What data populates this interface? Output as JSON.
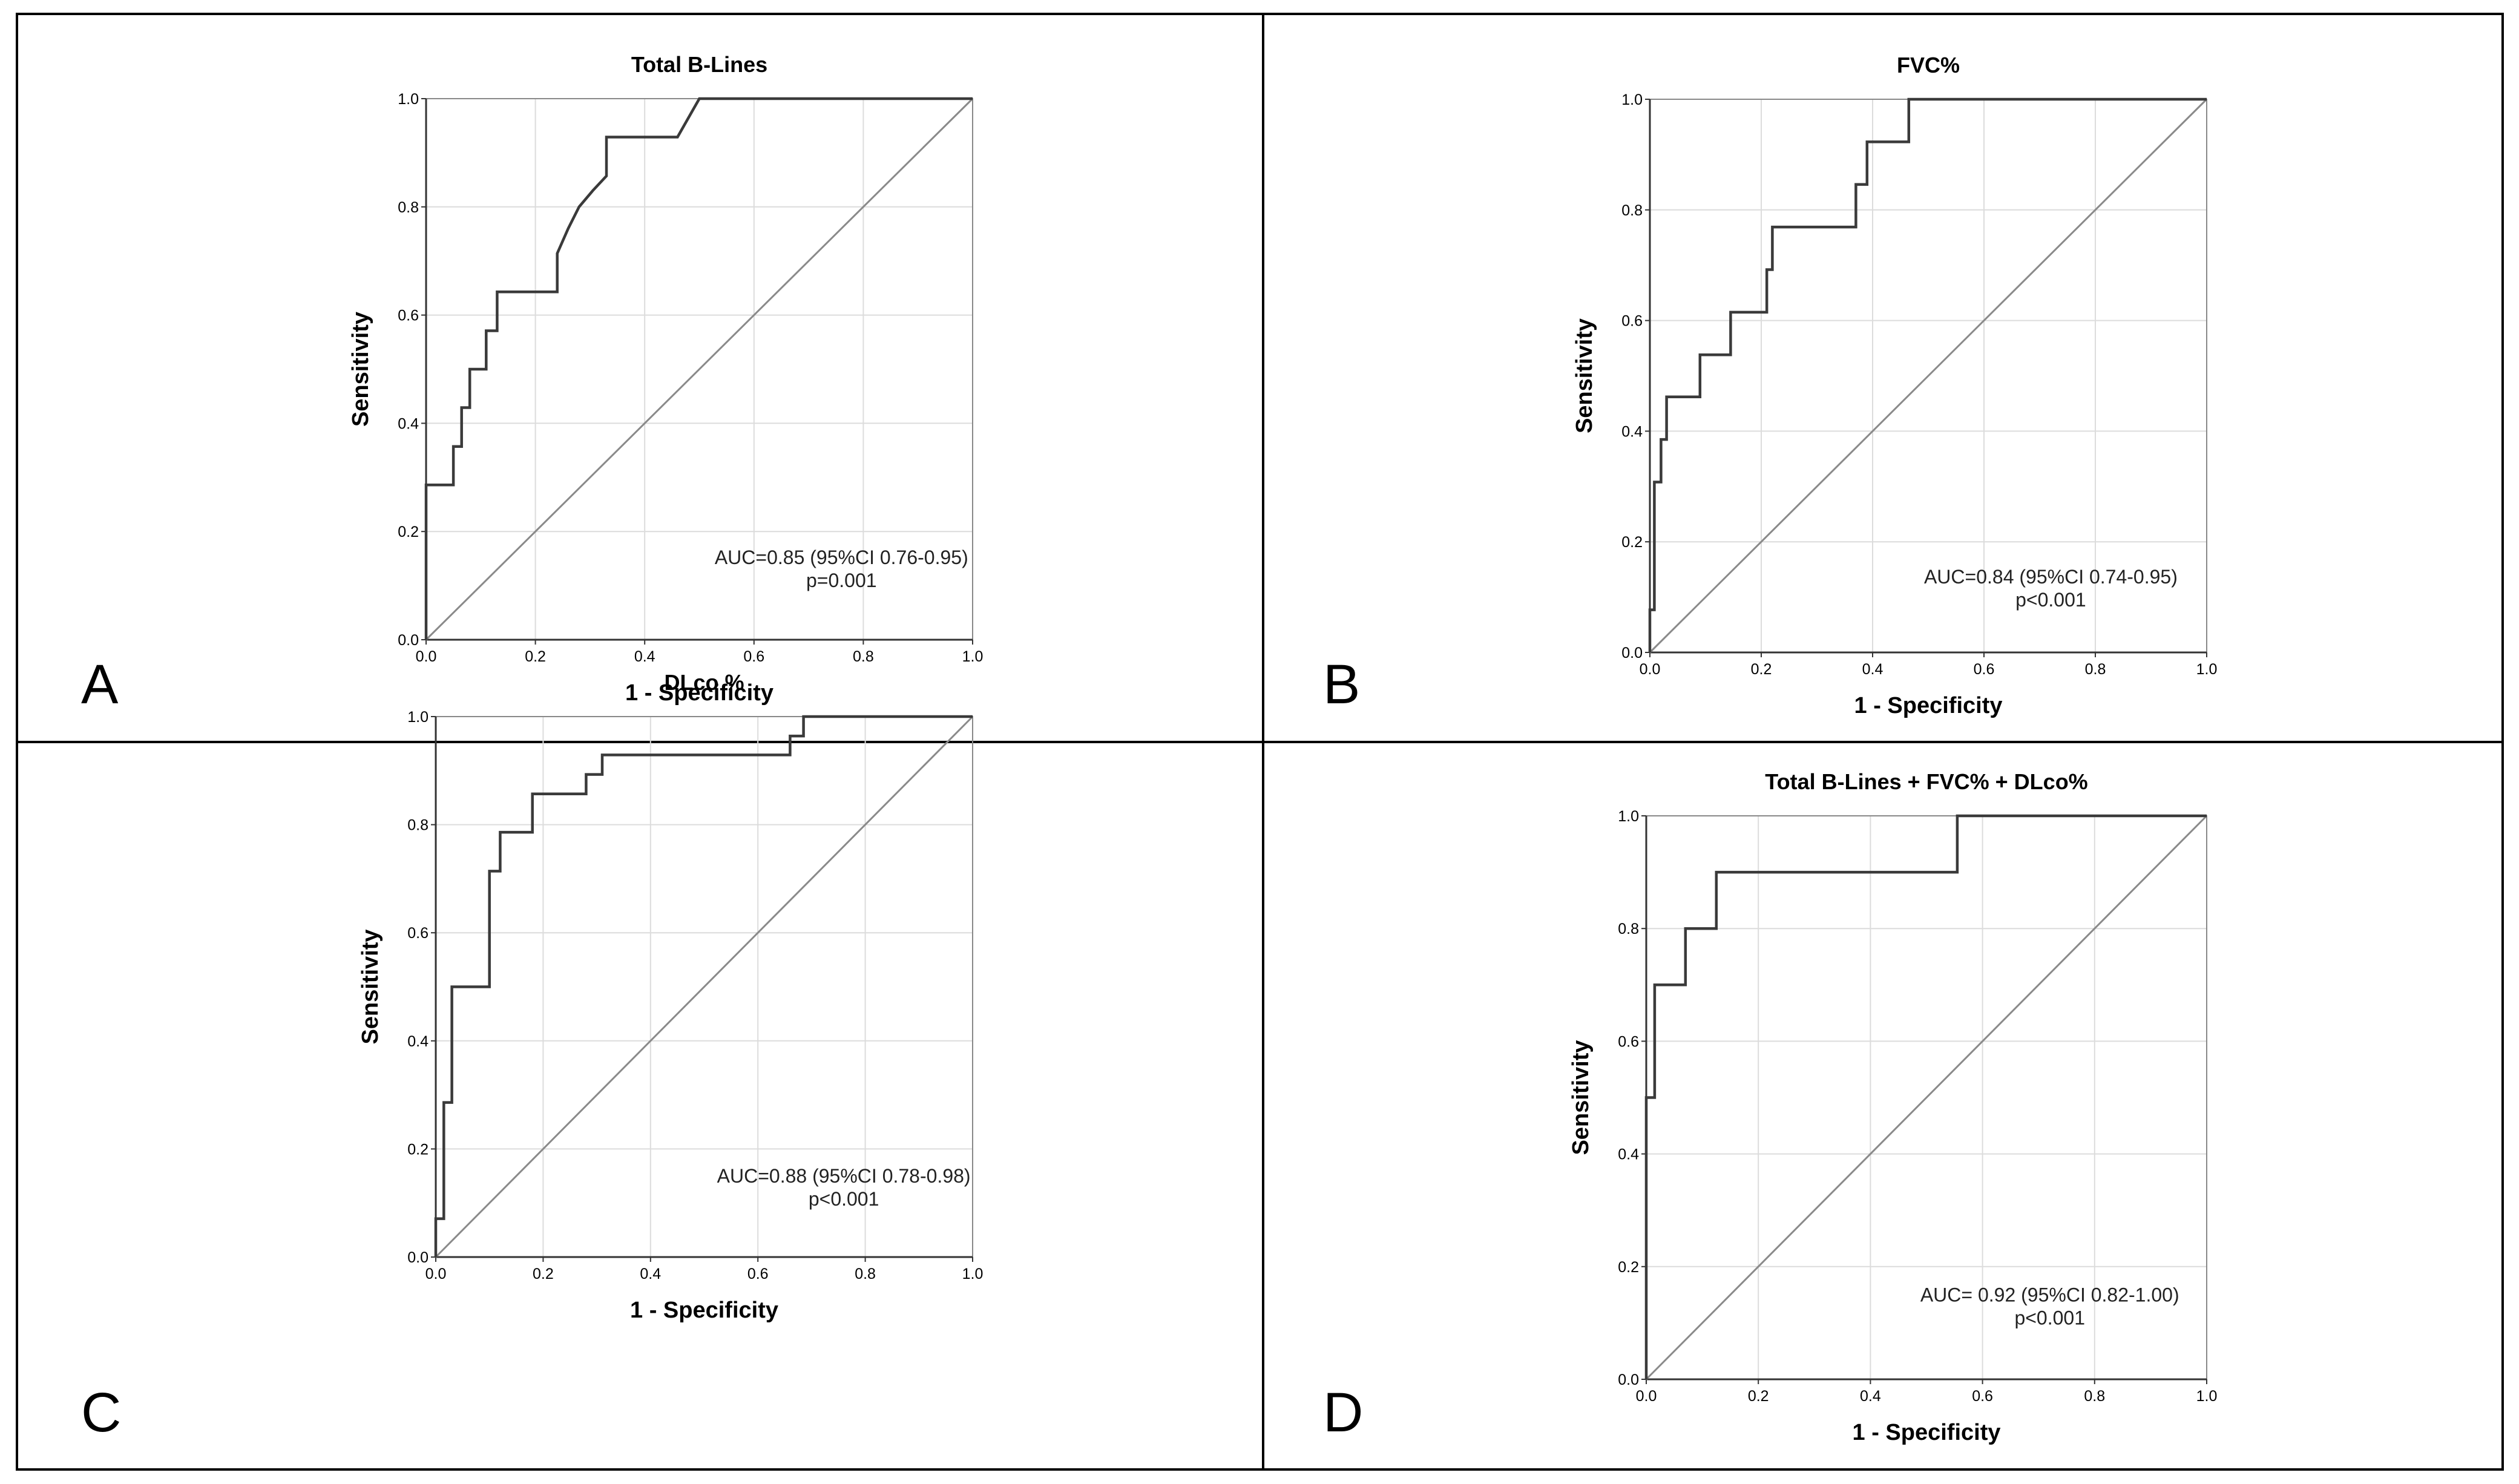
{
  "chart_data": [
    {
      "panel_label": "A",
      "type": "line",
      "title": "Total B-Lines",
      "xlabel": "1 - Specificity",
      "ylabel": "Sensitivity",
      "xlim": [
        0,
        1
      ],
      "ylim": [
        0,
        1
      ],
      "xticks": [
        "0.0",
        "0.2",
        "0.4",
        "0.6",
        "0.8",
        "1.0"
      ],
      "yticks": [
        "0.0",
        "0.2",
        "0.4",
        "0.6",
        "0.8",
        "1.0"
      ],
      "grid": true,
      "reference_line": [
        [
          0,
          0
        ],
        [
          1,
          1
        ]
      ],
      "annotations": [
        "AUC=0.85 (95%CI 0.76-0.95)",
        "p=0.001"
      ],
      "series": [
        {
          "x": [
            0,
            0,
            0.05,
            0.05,
            0.065,
            0.065,
            0.08,
            0.08,
            0.11,
            0.11,
            0.13,
            0.13,
            0.24,
            0.24,
            0.26,
            0.28,
            0.305,
            0.33,
            0.33,
            0.46,
            0.5,
            1.0
          ],
          "y": [
            0,
            0.286,
            0.286,
            0.357,
            0.357,
            0.429,
            0.429,
            0.5,
            0.5,
            0.571,
            0.571,
            0.643,
            0.643,
            0.714,
            0.76,
            0.8,
            0.83,
            0.857,
            0.929,
            0.929,
            1.0,
            1.0
          ]
        }
      ]
    },
    {
      "panel_label": "B",
      "type": "line",
      "title": "FVC%",
      "xlabel": "1 - Specificity",
      "ylabel": "Sensitivity",
      "xlim": [
        0,
        1
      ],
      "ylim": [
        0,
        1
      ],
      "xticks": [
        "0.0",
        "0.2",
        "0.4",
        "0.6",
        "0.8",
        "1.0"
      ],
      "yticks": [
        "0.0",
        "0.2",
        "0.4",
        "0.6",
        "0.8",
        "1.0"
      ],
      "grid": true,
      "reference_line": [
        [
          0,
          0
        ],
        [
          1,
          1
        ]
      ],
      "annotations": [
        "AUC=0.84 (95%CI 0.74-0.95)",
        "p<0.001"
      ],
      "series": [
        {
          "x": [
            0,
            0,
            0.008,
            0.008,
            0.02,
            0.02,
            0.03,
            0.03,
            0.09,
            0.09,
            0.145,
            0.145,
            0.21,
            0.21,
            0.22,
            0.22,
            0.37,
            0.37,
            0.39,
            0.39,
            0.465,
            0.465,
            1.0
          ],
          "y": [
            0,
            0.077,
            0.077,
            0.308,
            0.308,
            0.385,
            0.385,
            0.462,
            0.462,
            0.538,
            0.538,
            0.615,
            0.615,
            0.692,
            0.692,
            0.769,
            0.769,
            0.846,
            0.846,
            0.923,
            0.923,
            1.0,
            1.0
          ]
        }
      ]
    },
    {
      "panel_label": "C",
      "type": "line",
      "title": "DLco %",
      "xlabel": "1 - Specificity",
      "ylabel": "Sensitivity",
      "xlim": [
        0,
        1
      ],
      "ylim": [
        0,
        1
      ],
      "xticks": [
        "0.0",
        "0.2",
        "0.4",
        "0.6",
        "0.8",
        "1.0"
      ],
      "yticks": [
        "0.0",
        "0.2",
        "0.4",
        "0.6",
        "0.8",
        "1.0"
      ],
      "grid": true,
      "reference_line": [
        [
          0,
          0
        ],
        [
          1,
          1
        ]
      ],
      "annotations": [
        "AUC=0.88 (95%CI 0.78-0.98)",
        "p<0.001"
      ],
      "series": [
        {
          "x": [
            0,
            0,
            0.015,
            0.015,
            0.03,
            0.03,
            0.1,
            0.1,
            0.12,
            0.12,
            0.18,
            0.18,
            0.28,
            0.28,
            0.31,
            0.31,
            0.66,
            0.66,
            0.685,
            0.685,
            1.0
          ],
          "y": [
            0,
            0.071,
            0.071,
            0.286,
            0.286,
            0.5,
            0.5,
            0.714,
            0.714,
            0.786,
            0.786,
            0.857,
            0.857,
            0.893,
            0.893,
            0.929,
            0.929,
            0.964,
            0.964,
            1.0,
            1.0
          ]
        }
      ]
    },
    {
      "panel_label": "D",
      "type": "line",
      "title": "Total B-Lines + FVC% + DLco%",
      "xlabel": "1 - Specificity",
      "ylabel": "Sensitivity",
      "xlim": [
        0,
        1
      ],
      "ylim": [
        0,
        1
      ],
      "xticks": [
        "0.0",
        "0.2",
        "0.4",
        "0.6",
        "0.8",
        "1.0"
      ],
      "yticks": [
        "0.0",
        "0.2",
        "0.4",
        "0.6",
        "0.8",
        "1.0"
      ],
      "grid": true,
      "reference_line": [
        [
          0,
          0
        ],
        [
          1,
          1
        ]
      ],
      "annotations": [
        "AUC= 0.92 (95%CI 0.82-1.00)",
        "p<0.001"
      ],
      "series": [
        {
          "x": [
            0,
            0,
            0.015,
            0.015,
            0.07,
            0.07,
            0.125,
            0.125,
            0.555,
            0.555,
            1.0
          ],
          "y": [
            0,
            0.5,
            0.5,
            0.7,
            0.7,
            0.8,
            0.8,
            0.9,
            0.9,
            1.0,
            1.0
          ]
        }
      ]
    }
  ]
}
